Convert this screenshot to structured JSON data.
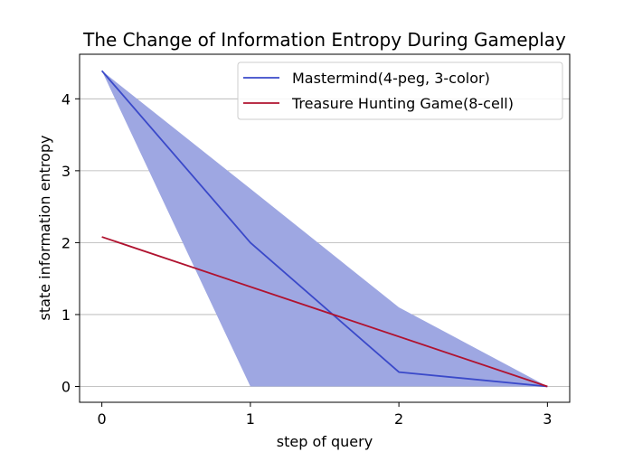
{
  "chart_data": {
    "type": "line",
    "title": "The Change of Information Entropy During Gameplay",
    "xlabel": "step of query",
    "ylabel": "state information entropy",
    "xlim": [
      -0.15,
      3.15
    ],
    "ylim": [
      -0.22,
      4.62
    ],
    "x_ticks": [
      0,
      1,
      2,
      3
    ],
    "y_ticks": [
      0,
      1,
      2,
      3,
      4
    ],
    "grid": "horizontal",
    "legend_position": "top-right",
    "series": [
      {
        "name": "Mastermind(4-peg, 3-color)",
        "color": "#3a49c9",
        "x": [
          0,
          1,
          2,
          3
        ],
        "y": [
          4.39,
          2.0,
          0.2,
          0.0
        ],
        "band": {
          "color": "#9ea7e2",
          "upper": [
            4.39,
            2.75,
            1.1,
            0.0
          ],
          "lower": [
            4.39,
            0.0,
            0.0,
            0.0
          ]
        }
      },
      {
        "name": "Treasure Hunting Game(8-cell)",
        "color": "#b0122f",
        "x": [
          0,
          3
        ],
        "y": [
          2.08,
          0.0
        ]
      }
    ]
  }
}
